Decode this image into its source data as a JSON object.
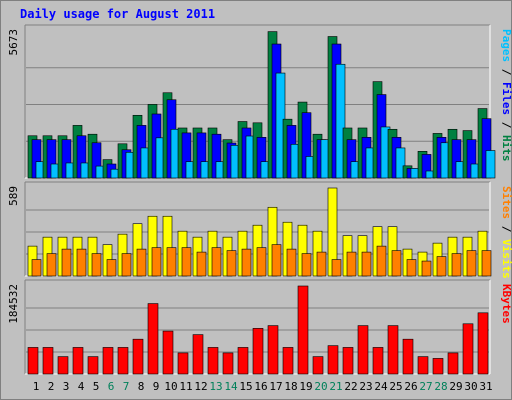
{
  "chart_data": [
    {
      "type": "bar",
      "title": "Daily usage for August 2011",
      "ylabel_max": "5673",
      "ylim": [
        0,
        5673
      ],
      "side_labels": [
        {
          "text": "Pages",
          "color": "#00C0FF"
        },
        {
          "text": " / ",
          "color": "#000000"
        },
        {
          "text": "Files",
          "color": "#0000FF"
        },
        {
          "text": " / ",
          "color": "#000000"
        },
        {
          "text": "Hits",
          "color": "#008040"
        }
      ],
      "categories": [
        "1",
        "2",
        "3",
        "4",
        "5",
        "6",
        "7",
        "8",
        "9",
        "10",
        "11",
        "12",
        "13",
        "14",
        "15",
        "16",
        "17",
        "18",
        "19",
        "20",
        "21",
        "22",
        "23",
        "24",
        "25",
        "26",
        "27",
        "28",
        "29",
        "30",
        "31"
      ],
      "weekend_days": [
        "6",
        "7",
        "13",
        "14",
        "20",
        "21",
        "27",
        "28"
      ],
      "series": [
        {
          "name": "Hits",
          "color": "#008040",
          "values": [
            1630,
            1630,
            1630,
            2030,
            1690,
            710,
            1320,
            2420,
            2840,
            3290,
            1930,
            1930,
            1930,
            1480,
            2180,
            2130,
            5650,
            2270,
            2930,
            1690,
            5460,
            1930,
            1930,
            3720,
            1880,
            470,
            1030,
            1720,
            1880,
            1830,
            2680
          ]
        },
        {
          "name": "Files",
          "color": "#0000FF",
          "values": [
            1480,
            1480,
            1480,
            1630,
            1360,
            540,
            1090,
            2030,
            2470,
            3020,
            1740,
            1740,
            1690,
            1350,
            1930,
            1570,
            5170,
            2030,
            2520,
            1480,
            5170,
            1480,
            1570,
            3220,
            1570,
            370,
            910,
            1570,
            1480,
            1480,
            2290
          ]
        },
        {
          "name": "Pages",
          "color": "#00C0FF",
          "values": [
            630,
            540,
            580,
            580,
            460,
            340,
            990,
            1160,
            1550,
            1880,
            630,
            630,
            630,
            1260,
            1620,
            630,
            4050,
            1300,
            830,
            1480,
            4390,
            630,
            1160,
            1970,
            1160,
            370,
            270,
            1360,
            630,
            540,
            1060
          ]
        }
      ]
    },
    {
      "type": "bar",
      "ylabel_max": "589",
      "ylim": [
        0,
        589
      ],
      "side_labels": [
        {
          "text": "Sites",
          "color": "#FF8000"
        },
        {
          "text": " / ",
          "color": "#000000"
        },
        {
          "text": "Visits",
          "color": "#FFFF00"
        }
      ],
      "categories": [
        "1",
        "2",
        "3",
        "4",
        "5",
        "6",
        "7",
        "8",
        "9",
        "10",
        "11",
        "12",
        "13",
        "14",
        "15",
        "16",
        "17",
        "18",
        "19",
        "20",
        "21",
        "22",
        "23",
        "24",
        "25",
        "26",
        "27",
        "28",
        "29",
        "30",
        "31"
      ],
      "series": [
        {
          "name": "Visits",
          "color": "#FFFF00",
          "values": [
            200,
            260,
            260,
            260,
            260,
            210,
            280,
            350,
            400,
            400,
            300,
            260,
            300,
            260,
            300,
            340,
            460,
            360,
            340,
            300,
            589,
            270,
            270,
            330,
            330,
            180,
            160,
            220,
            260,
            260,
            300
          ]
        },
        {
          "name": "Sites",
          "color": "#FF8000",
          "values": [
            110,
            150,
            180,
            180,
            150,
            110,
            150,
            180,
            190,
            190,
            190,
            160,
            190,
            170,
            180,
            190,
            210,
            180,
            150,
            160,
            110,
            160,
            160,
            200,
            170,
            110,
            100,
            130,
            150,
            170,
            170
          ]
        }
      ]
    },
    {
      "type": "bar",
      "ylabel_max": "184532",
      "ylim": [
        0,
        184532
      ],
      "side_labels": [
        {
          "text": "KBytes",
          "color": "#FF0000"
        }
      ],
      "categories": [
        "1",
        "2",
        "3",
        "4",
        "5",
        "6",
        "7",
        "8",
        "9",
        "10",
        "11",
        "12",
        "13",
        "14",
        "15",
        "16",
        "17",
        "18",
        "19",
        "20",
        "21",
        "22",
        "23",
        "24",
        "25",
        "26",
        "27",
        "28",
        "29",
        "30",
        "31"
      ],
      "series": [
        {
          "name": "KBytes",
          "color": "#FF0000",
          "values": [
            55700,
            55700,
            36500,
            55700,
            36500,
            55700,
            55700,
            73000,
            147700,
            90000,
            44200,
            82600,
            55700,
            44200,
            55700,
            95700,
            101500,
            55700,
            184532,
            36500,
            59500,
            55700,
            101500,
            55700,
            101500,
            73000,
            36500,
            32700,
            44200,
            105300,
            128300
          ]
        }
      ]
    }
  ]
}
